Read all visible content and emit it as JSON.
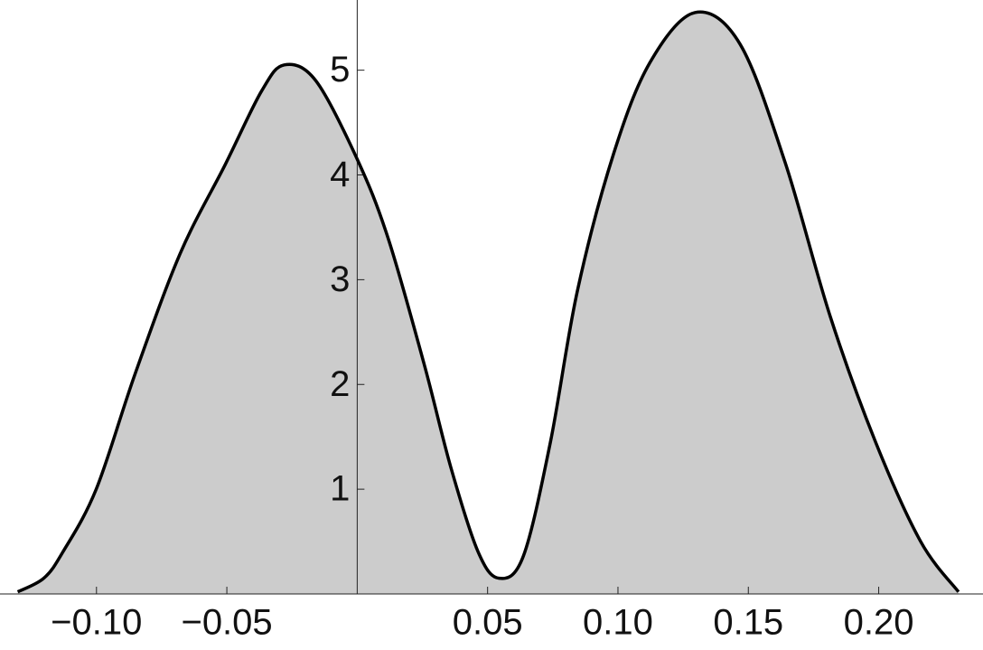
{
  "chart_data": {
    "type": "area",
    "x": [
      -0.1302,
      -0.1202,
      -0.1129,
      -0.1001,
      -0.0852,
      -0.0679,
      -0.0506,
      -0.0367,
      -0.028,
      -0.0159,
      0,
      0.0118,
      0.0256,
      0.036,
      0.0464,
      0.0544,
      0.0637,
      0.0741,
      0.0845,
      0.0983,
      0.1122,
      0.1295,
      0.1468,
      0.1641,
      0.1814,
      0.1988,
      0.2161,
      0.2306
    ],
    "values": [
      0.02,
      0.15,
      0.4,
      1.0,
      2.1,
      3.25,
      4.1,
      4.8,
      5.05,
      4.9,
      4.15,
      3.4,
      2.2,
      1.2,
      0.4,
      0.15,
      0.36,
      1.45,
      2.9,
      4.2,
      5.07,
      5.55,
      5.25,
      4.12,
      2.65,
      1.45,
      0.5,
      0.02
    ],
    "color": "#cccccc",
    "xlim": [
      -0.137,
      0.24
    ],
    "ylim": [
      0,
      5.67
    ],
    "xticks": [
      {
        "value": -0.1,
        "label": "−0.10"
      },
      {
        "value": -0.05,
        "label": "−0.05"
      },
      0.05,
      {
        "value": 0.1,
        "label": "0.10"
      },
      0.15,
      {
        "value": 0.2,
        "label": "0.20"
      }
    ],
    "yticks": [
      1,
      2,
      3,
      4,
      5
    ]
  }
}
